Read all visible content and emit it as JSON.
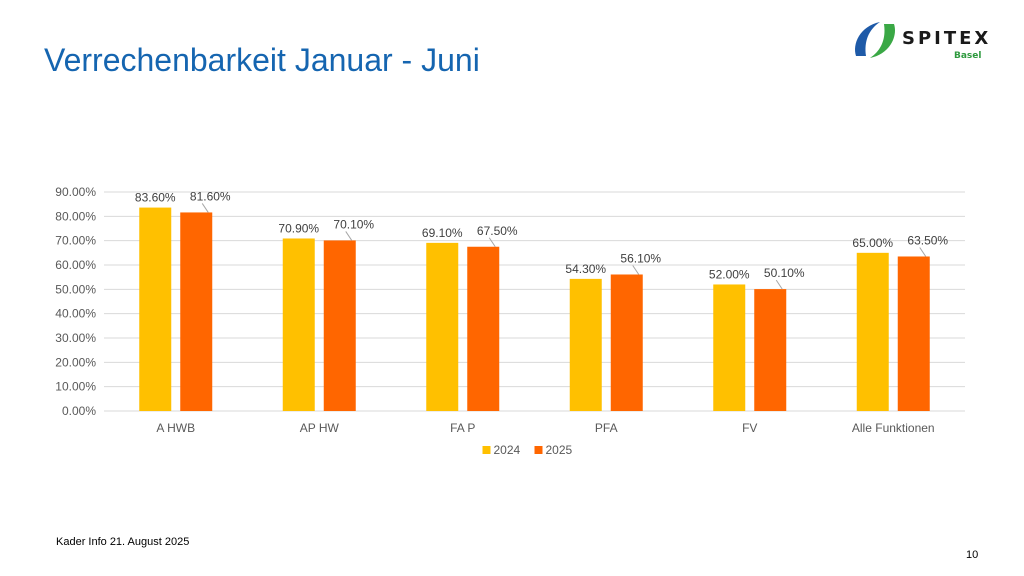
{
  "slide": {
    "title": "Verrechenbarkeit Januar - Juni",
    "footer": "Kader Info 21. August 2025",
    "page_number": "10"
  },
  "logo": {
    "word": "SPITEX",
    "sub": "Basel",
    "colors": {
      "blue": "#1e5aa8",
      "green": "#3aa845"
    }
  },
  "chart_data": {
    "type": "bar",
    "title": "",
    "xlabel": "",
    "ylabel": "",
    "categories": [
      "A HWB",
      "AP HW",
      "FA P",
      "PFA",
      "FV",
      "Alle Funktionen"
    ],
    "series": [
      {
        "name": "2024",
        "color": "#ffc000",
        "values": [
          83.6,
          70.9,
          69.1,
          54.3,
          52.0,
          65.0
        ]
      },
      {
        "name": "2025",
        "color": "#ff6600",
        "values": [
          81.6,
          70.1,
          67.5,
          56.1,
          50.1,
          63.5
        ]
      }
    ],
    "ylim": [
      0,
      90
    ],
    "yticks": [
      0,
      10,
      20,
      30,
      40,
      50,
      60,
      70,
      80,
      90
    ],
    "tick_format": "percent_2dp",
    "grid": true,
    "legend": "bottom-center"
  }
}
